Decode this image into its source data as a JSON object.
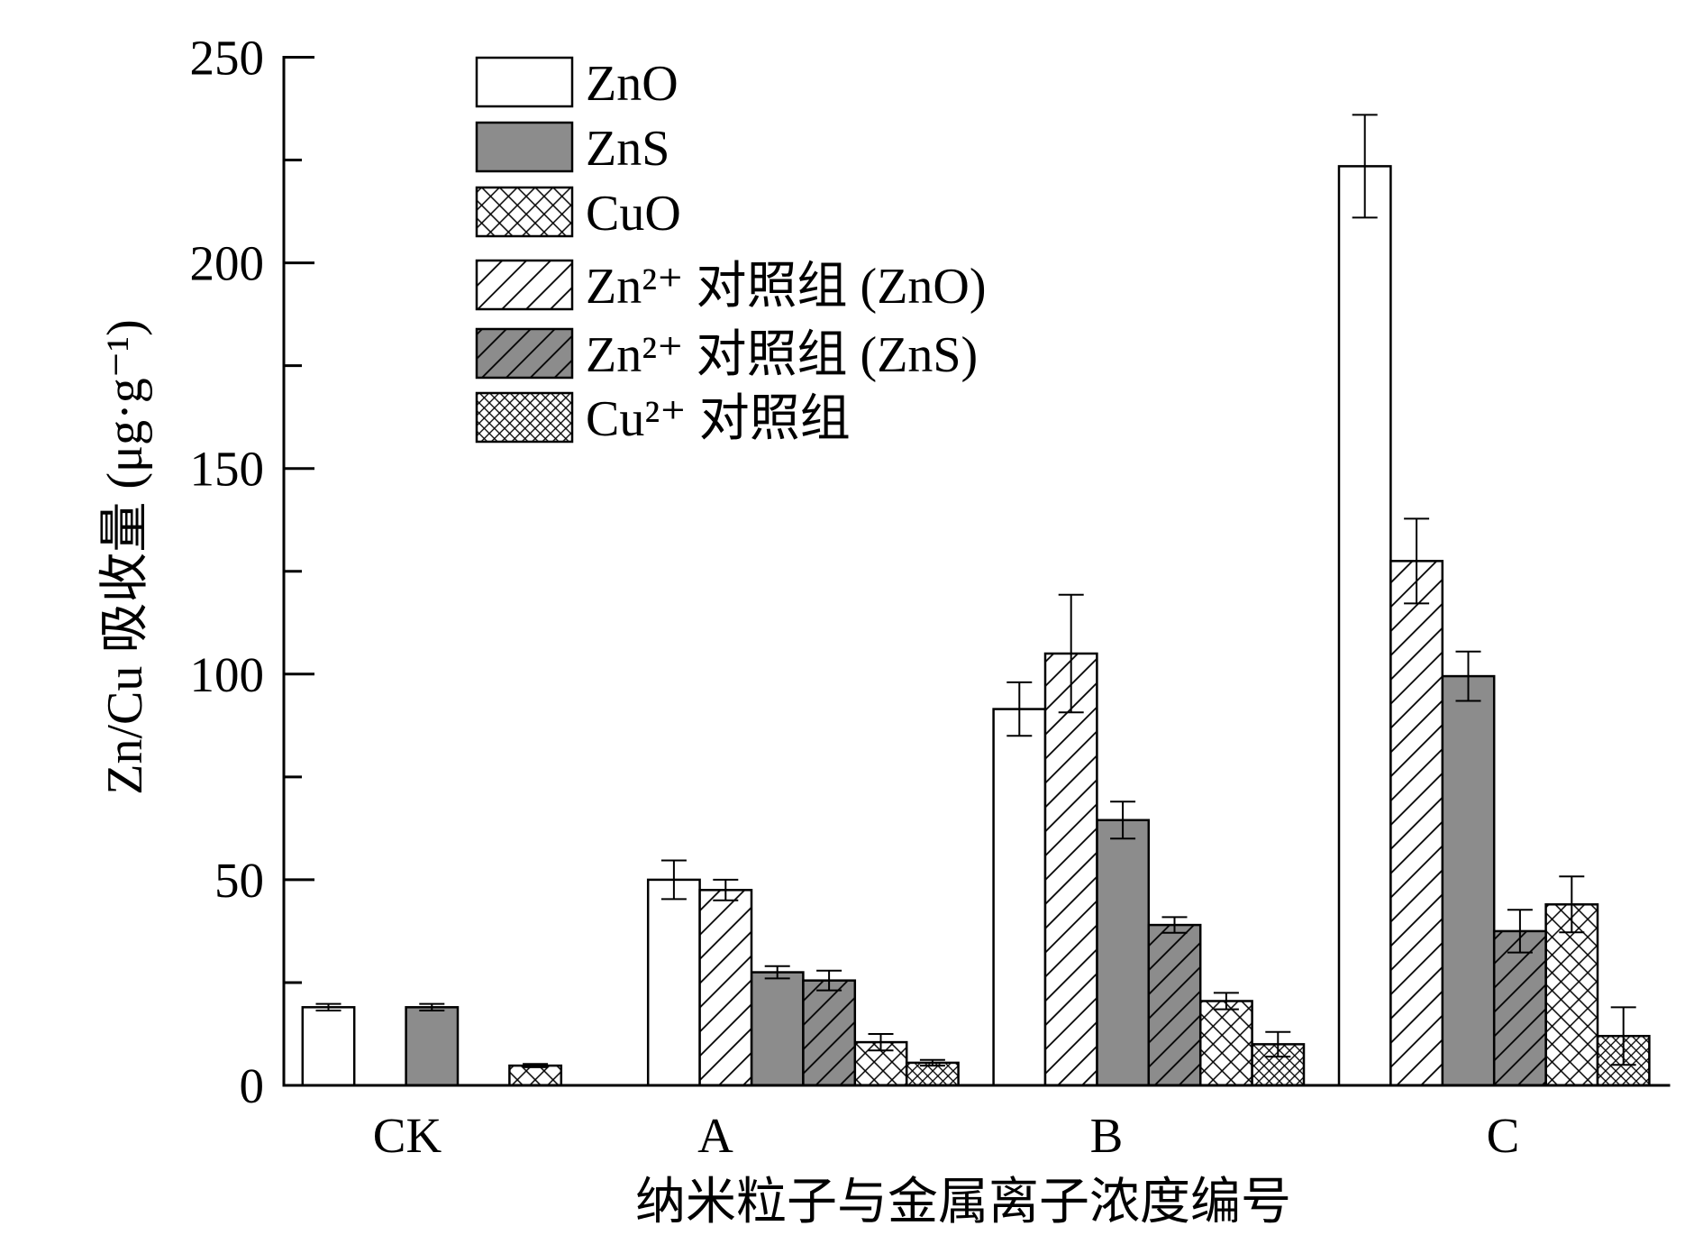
{
  "chart_data": {
    "type": "bar",
    "xlabel": "纳米粒子与金属离子浓度编号",
    "ylabel": "Zn/Cu 吸收量 (μg·g⁻¹)",
    "categories": [
      "CK",
      "A",
      "B",
      "C"
    ],
    "ylim": [
      0,
      250
    ],
    "yticks": [
      0,
      50,
      100,
      150,
      200,
      250
    ],
    "grid": false,
    "legend_position": "top-left",
    "series": [
      {
        "name": "ZnO",
        "color": "#ffffff",
        "values": [
          19,
          50,
          91.5,
          223.5
        ],
        "errors": [
          0.8,
          4.7,
          6.5,
          12.5
        ]
      },
      {
        "name": "ZnS",
        "color": "#8c8c8c",
        "values": [
          19,
          27.5,
          64.5,
          99.5
        ],
        "errors": [
          0.8,
          1.5,
          4.5,
          6
        ]
      },
      {
        "name": "CuO",
        "color": "#ffffff",
        "values": [
          4.8,
          10.5,
          20.5,
          44
        ],
        "errors": [
          0.4,
          2,
          2,
          6.8
        ]
      },
      {
        "name": "Zn²⁺ 对照组 (ZnO)",
        "color": "#ffffff",
        "values": [
          null,
          47.5,
          105,
          127.5
        ],
        "errors": [
          null,
          2.5,
          14.3,
          10.3
        ]
      },
      {
        "name": "Zn²⁺ 对照组 (ZnS)",
        "color": "#8c8c8c",
        "values": [
          null,
          25.5,
          39,
          37.5
        ],
        "errors": [
          null,
          2.4,
          1.9,
          5.2
        ]
      },
      {
        "name": "Cu²⁺ 对照组",
        "color": "#ffffff",
        "values": [
          null,
          5.5,
          10,
          12
        ],
        "errors": [
          null,
          0.7,
          3,
          7
        ]
      }
    ]
  }
}
